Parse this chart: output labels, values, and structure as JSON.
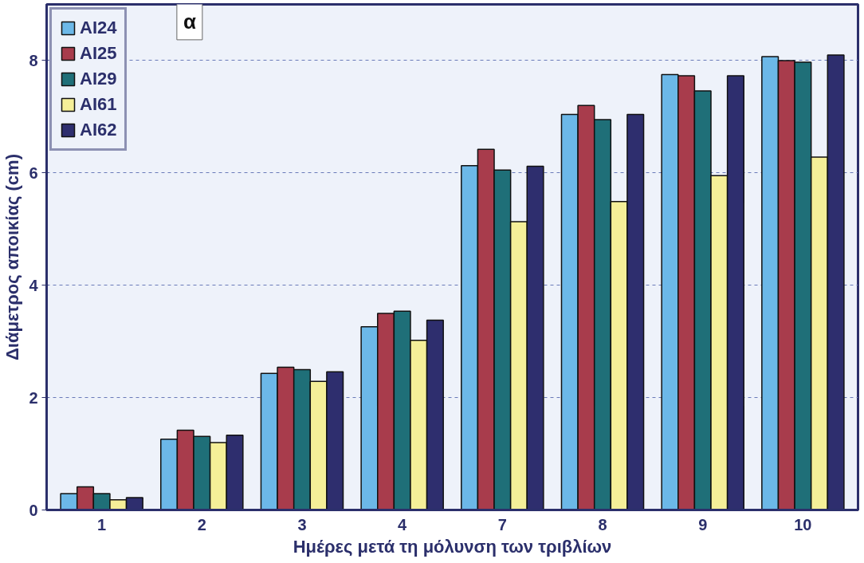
{
  "chart_data": {
    "type": "bar",
    "xlabel": "Ημέρες μετά τη μόλυνση των τριβλίων",
    "ylabel": "Διάμετρος αποικίας (cm)",
    "annotations": [
      "α"
    ],
    "categories": [
      "1",
      "2",
      "3",
      "4",
      "7",
      "8",
      "9",
      "10"
    ],
    "series": [
      {
        "name": "AI24",
        "color": "#6cb8e8",
        "values": [
          0.29,
          1.26,
          2.43,
          3.26,
          6.13,
          7.04,
          7.75,
          8.07
        ]
      },
      {
        "name": "AI25",
        "color": "#a83c4c",
        "values": [
          0.41,
          1.42,
          2.54,
          3.5,
          6.42,
          7.2,
          7.73,
          8.0
        ]
      },
      {
        "name": "AI29",
        "color": "#1f6f78",
        "values": [
          0.29,
          1.31,
          2.5,
          3.54,
          6.05,
          6.95,
          7.46,
          7.97
        ]
      },
      {
        "name": "AI61",
        "color": "#f5ef98",
        "values": [
          0.18,
          1.2,
          2.29,
          3.02,
          5.13,
          5.49,
          5.95,
          6.28
        ]
      },
      {
        "name": "AI62",
        "color": "#2e2e6e",
        "values": [
          0.22,
          1.33,
          2.46,
          3.38,
          6.12,
          7.04,
          7.73,
          8.1
        ]
      }
    ],
    "ylim": [
      0,
      9
    ],
    "yticks": [
      0,
      2,
      4,
      6,
      8
    ],
    "grid": "y",
    "legend": "top left"
  }
}
